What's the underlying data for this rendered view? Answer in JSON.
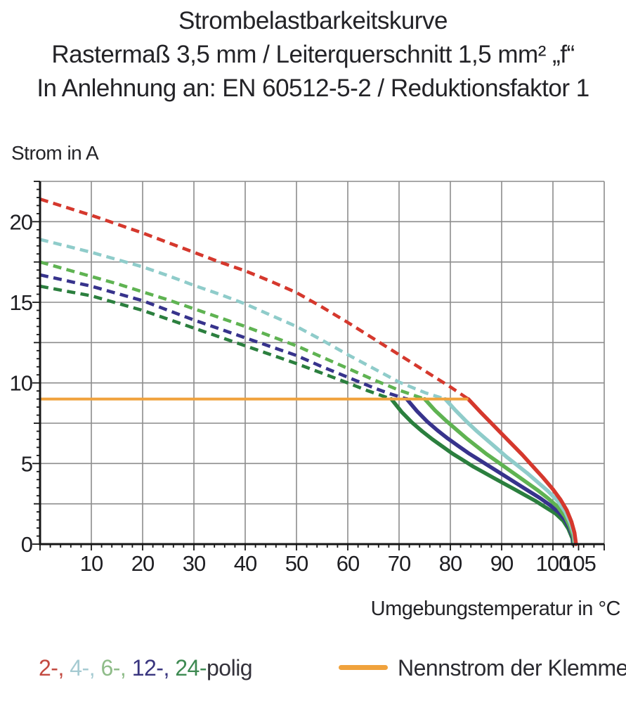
{
  "title": {
    "line1": "Strombelastbarkeitskurve",
    "line2": "Rastermaß 3,5 mm / Leiterquerschnitt 1,5 mm² „f“",
    "line3": "In Anlehnung an: EN 60512-5-2 / Reduktionsfaktor 1"
  },
  "chart_data": {
    "type": "line",
    "title": "Strombelastbarkeitskurve",
    "xlabel": "Umgebungstemperatur in °C",
    "ylabel": "Strom in A",
    "xlim": [
      0,
      110
    ],
    "ylim": [
      0,
      22.5
    ],
    "grid": "on",
    "x_axis": {
      "tick_labels": [
        10,
        20,
        30,
        40,
        50,
        60,
        70,
        80,
        90,
        100,
        105
      ],
      "minor_tick_step": 2,
      "gridline_step": 10
    },
    "y_axis": {
      "tick_labels": [
        0,
        5,
        10,
        15,
        20
      ],
      "minor_tick_step": 0.5,
      "gridline_step": 2.5
    },
    "nominal_line": {
      "label": "Nennstrom der Klemme",
      "value": 9,
      "x_start": 0,
      "x_end": 83.5,
      "color": "#F0A23C"
    },
    "series": [
      {
        "name": "24-polig",
        "color": "#2B7F3E",
        "dashed": [
          [
            0,
            16.0
          ],
          [
            5,
            15.7
          ],
          [
            10,
            15.4
          ],
          [
            15,
            14.95
          ],
          [
            20,
            14.5
          ],
          [
            25,
            13.95
          ],
          [
            30,
            13.4
          ],
          [
            35,
            12.85
          ],
          [
            40,
            12.3
          ],
          [
            45,
            11.75
          ],
          [
            50,
            11.2
          ],
          [
            55,
            10.6
          ],
          [
            60,
            10.0
          ],
          [
            64,
            9.5
          ],
          [
            68.5,
            9.0
          ]
        ],
        "solid": [
          [
            68.5,
            9.0
          ],
          [
            70.5,
            8.2
          ],
          [
            72.5,
            7.55
          ],
          [
            74.5,
            7.0
          ],
          [
            76.5,
            6.5
          ],
          [
            78.5,
            6.05
          ],
          [
            80.5,
            5.6
          ],
          [
            82.5,
            5.2
          ],
          [
            84.5,
            4.8
          ],
          [
            86.5,
            4.45
          ],
          [
            88.5,
            4.1
          ],
          [
            90.5,
            3.75
          ],
          [
            92.5,
            3.4
          ],
          [
            94.5,
            3.05
          ],
          [
            96.5,
            2.7
          ],
          [
            98.5,
            2.3
          ],
          [
            100.5,
            1.9
          ],
          [
            102,
            1.45
          ],
          [
            103,
            0.95
          ],
          [
            103.8,
            0.35
          ],
          [
            103.9,
            0
          ]
        ]
      },
      {
        "name": "12-polig",
        "color": "#37338C",
        "dashed": [
          [
            0,
            16.7
          ],
          [
            5,
            16.35
          ],
          [
            10,
            16.0
          ],
          [
            15,
            15.55
          ],
          [
            20,
            15.1
          ],
          [
            25,
            14.5
          ],
          [
            30,
            13.9
          ],
          [
            35,
            13.35
          ],
          [
            40,
            12.8
          ],
          [
            45,
            12.25
          ],
          [
            50,
            11.7
          ],
          [
            55,
            11.0
          ],
          [
            60,
            10.35
          ],
          [
            65,
            9.7
          ],
          [
            68,
            9.35
          ],
          [
            71.5,
            9.0
          ]
        ],
        "solid": [
          [
            71.5,
            9.0
          ],
          [
            73.5,
            8.25
          ],
          [
            75.5,
            7.6
          ],
          [
            77.5,
            7.05
          ],
          [
            79.5,
            6.55
          ],
          [
            81.5,
            6.1
          ],
          [
            83.5,
            5.65
          ],
          [
            85.5,
            5.25
          ],
          [
            87.5,
            4.85
          ],
          [
            89.5,
            4.45
          ],
          [
            91.5,
            4.05
          ],
          [
            93.5,
            3.65
          ],
          [
            95.5,
            3.25
          ],
          [
            97.5,
            2.85
          ],
          [
            99.5,
            2.4
          ],
          [
            101.2,
            1.95
          ],
          [
            102.4,
            1.5
          ],
          [
            103.2,
            1.0
          ],
          [
            103.9,
            0.4
          ],
          [
            104,
            0
          ]
        ]
      },
      {
        "name": "6-polig",
        "color": "#5FB352",
        "dashed": [
          [
            0,
            17.5
          ],
          [
            5,
            17.05
          ],
          [
            10,
            16.6
          ],
          [
            15,
            16.15
          ],
          [
            20,
            15.65
          ],
          [
            25,
            15.15
          ],
          [
            30,
            14.6
          ],
          [
            35,
            14.05
          ],
          [
            40,
            13.5
          ],
          [
            45,
            12.9
          ],
          [
            50,
            12.3
          ],
          [
            55,
            11.6
          ],
          [
            60,
            10.9
          ],
          [
            65,
            10.2
          ],
          [
            70,
            9.55
          ],
          [
            75,
            9.0
          ]
        ],
        "solid": [
          [
            75,
            9.0
          ],
          [
            77,
            8.3
          ],
          [
            79,
            7.7
          ],
          [
            81,
            7.15
          ],
          [
            83,
            6.6
          ],
          [
            85,
            6.1
          ],
          [
            87,
            5.6
          ],
          [
            89,
            5.15
          ],
          [
            91,
            4.7
          ],
          [
            93,
            4.25
          ],
          [
            95,
            3.8
          ],
          [
            97,
            3.35
          ],
          [
            99,
            2.85
          ],
          [
            101,
            2.3
          ],
          [
            102.4,
            1.7
          ],
          [
            103.3,
            1.1
          ],
          [
            104,
            0.45
          ],
          [
            104.15,
            0
          ]
        ]
      },
      {
        "name": "4-polig",
        "color": "#8FCCCA",
        "dashed": [
          [
            0,
            18.9
          ],
          [
            5,
            18.5
          ],
          [
            10,
            18.1
          ],
          [
            15,
            17.65
          ],
          [
            20,
            17.2
          ],
          [
            25,
            16.65
          ],
          [
            30,
            16.05
          ],
          [
            35,
            15.5
          ],
          [
            40,
            14.9
          ],
          [
            45,
            14.2
          ],
          [
            50,
            13.5
          ],
          [
            55,
            12.65
          ],
          [
            60,
            11.75
          ],
          [
            65,
            10.9
          ],
          [
            70,
            10.05
          ],
          [
            75,
            9.4
          ],
          [
            79,
            9.0
          ]
        ],
        "solid": [
          [
            79,
            9.0
          ],
          [
            81,
            8.3
          ],
          [
            83,
            7.65
          ],
          [
            85,
            7.05
          ],
          [
            87,
            6.5
          ],
          [
            89,
            5.95
          ],
          [
            91,
            5.4
          ],
          [
            93,
            4.9
          ],
          [
            95,
            4.4
          ],
          [
            97,
            3.85
          ],
          [
            99,
            3.3
          ],
          [
            101,
            2.65
          ],
          [
            102.4,
            2.0
          ],
          [
            103.4,
            1.3
          ],
          [
            104.1,
            0.6
          ],
          [
            104.3,
            0
          ]
        ]
      },
      {
        "name": "2-polig",
        "color": "#D5382D",
        "dashed": [
          [
            0,
            21.4
          ],
          [
            5,
            20.9
          ],
          [
            10,
            20.4
          ],
          [
            15,
            19.85
          ],
          [
            20,
            19.3
          ],
          [
            25,
            18.7
          ],
          [
            30,
            18.1
          ],
          [
            35,
            17.5
          ],
          [
            40,
            16.95
          ],
          [
            45,
            16.3
          ],
          [
            50,
            15.6
          ],
          [
            55,
            14.7
          ],
          [
            60,
            13.75
          ],
          [
            65,
            12.75
          ],
          [
            70,
            11.75
          ],
          [
            75,
            10.75
          ],
          [
            80,
            9.75
          ],
          [
            83.5,
            9.0
          ]
        ],
        "solid": [
          [
            83.5,
            9.0
          ],
          [
            86,
            8.15
          ],
          [
            88,
            7.5
          ],
          [
            90,
            6.85
          ],
          [
            92,
            6.2
          ],
          [
            94,
            5.55
          ],
          [
            96,
            4.85
          ],
          [
            98,
            4.15
          ],
          [
            100,
            3.4
          ],
          [
            101.5,
            2.75
          ],
          [
            102.7,
            2.1
          ],
          [
            103.6,
            1.4
          ],
          [
            104.2,
            0.7
          ],
          [
            104.5,
            0
          ]
        ]
      }
    ]
  },
  "legend": {
    "segments": [
      {
        "text": "2-, ",
        "color": "#C34A41"
      },
      {
        "text": "4-, ",
        "color": "#A6CBD2"
      },
      {
        "text": "6-, ",
        "color": "#8FBC89"
      },
      {
        "text": "12-, ",
        "color": "#39357F"
      },
      {
        "text": "24-",
        "color": "#3E8A52"
      },
      {
        "text": "polig",
        "color": "#34323B"
      }
    ],
    "nominal_label": "Nennstrom der Klemme"
  },
  "colors": {
    "grid": "#8C8C8C",
    "axis": "#161616",
    "tick_text": "#1e1e22",
    "orange": "#F0A23C"
  }
}
